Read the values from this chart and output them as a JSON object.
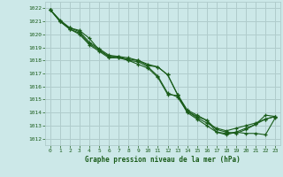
{
  "title": "Graphe pression niveau de la mer (hPa)",
  "background_color": "#cce8e8",
  "grid_color": "#b0cccc",
  "line_color": "#1a5c1a",
  "xlim": [
    -0.5,
    23.5
  ],
  "ylim": [
    1011.5,
    1022.5
  ],
  "yticks": [
    1012,
    1013,
    1014,
    1015,
    1016,
    1017,
    1018,
    1019,
    1020,
    1021,
    1022
  ],
  "xticks": [
    0,
    1,
    2,
    3,
    4,
    5,
    6,
    7,
    8,
    9,
    10,
    11,
    12,
    13,
    14,
    15,
    16,
    17,
    18,
    19,
    20,
    21,
    22,
    23
  ],
  "series": [
    [
      1021.9,
      1021.0,
      1020.5,
      1020.3,
      1019.7,
      1018.8,
      1018.3,
      1018.2,
      1018.1,
      1018.0,
      1017.6,
      1017.5,
      1016.9,
      1015.4,
      1014.1,
      1013.7,
      1013.4,
      1012.5,
      1012.4,
      1012.5,
      1012.8,
      1013.1,
      1013.8,
      1013.7
    ],
    [
      1021.9,
      1021.1,
      1020.5,
      1020.2,
      1019.4,
      1018.9,
      1018.4,
      1018.3,
      1018.2,
      1018.0,
      1017.7,
      1017.5,
      1016.9,
      1015.4,
      1014.2,
      1013.8,
      1013.4,
      1012.7,
      1012.5,
      1012.4,
      1012.7,
      1013.1,
      1013.5,
      1013.7
    ],
    [
      1021.9,
      1021.0,
      1020.4,
      1020.1,
      1019.3,
      1018.8,
      1018.3,
      1018.3,
      1018.0,
      1017.9,
      1017.5,
      1016.8,
      1015.5,
      1015.2,
      1014.1,
      1013.6,
      1013.2,
      1012.8,
      1012.6,
      1012.8,
      1013.0,
      1013.2,
      1013.5,
      1013.7
    ],
    [
      1021.9,
      1021.0,
      1020.4,
      1020.0,
      1019.2,
      1018.7,
      1018.2,
      1018.2,
      1018.0,
      1017.7,
      1017.4,
      1016.7,
      1015.4,
      1015.3,
      1014.0,
      1013.5,
      1013.0,
      1012.5,
      1012.3,
      1012.5,
      1012.4,
      1012.4,
      1012.3,
      1013.6
    ]
  ]
}
